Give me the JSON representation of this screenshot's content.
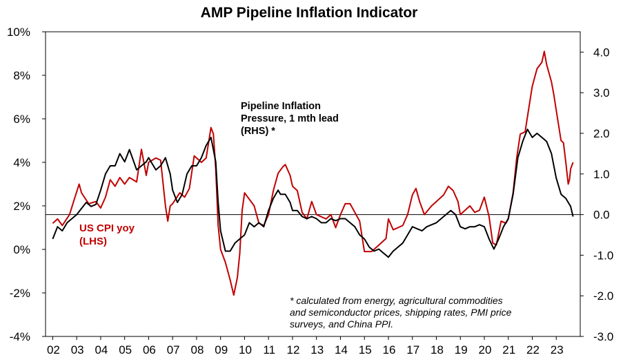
{
  "chart_data": {
    "type": "line",
    "title": "AMP Pipeline Inflation Indicator",
    "x_ticks": [
      "02",
      "03",
      "04",
      "05",
      "06",
      "07",
      "08",
      "09",
      "10",
      "11",
      "12",
      "13",
      "14",
      "15",
      "16",
      "17",
      "18",
      "19",
      "20",
      "21",
      "22",
      "23"
    ],
    "left_axis": {
      "ticks": [
        "10%",
        "8%",
        "6%",
        "4%",
        "2%",
        "0%",
        "-2%",
        "-4%"
      ],
      "ylim": [
        -4,
        10
      ]
    },
    "right_axis": {
      "ticks": [
        "4.0",
        "3.0",
        "2.0",
        "1.0",
        "0.0",
        "-1.0",
        "-2.0",
        "-3.0"
      ],
      "ylim": [
        -3,
        4.5
      ]
    },
    "grid": false,
    "series": [
      {
        "name": "US CPI yoy (LHS)",
        "axis": "left",
        "color": "#c00000",
        "label_lines": [
          "US CPI yoy",
          "(LHS)"
        ],
        "points": [
          [
            2002.0,
            1.2
          ],
          [
            2002.2,
            1.4
          ],
          [
            2002.4,
            1.1
          ],
          [
            2002.7,
            1.6
          ],
          [
            2002.9,
            2.3
          ],
          [
            2003.1,
            3.0
          ],
          [
            2003.2,
            2.6
          ],
          [
            2003.5,
            2.1
          ],
          [
            2003.8,
            2.2
          ],
          [
            2004.0,
            1.9
          ],
          [
            2004.2,
            2.4
          ],
          [
            2004.4,
            3.2
          ],
          [
            2004.6,
            2.9
          ],
          [
            2004.8,
            3.3
          ],
          [
            2005.0,
            3.0
          ],
          [
            2005.2,
            3.3
          ],
          [
            2005.5,
            3.1
          ],
          [
            2005.7,
            4.6
          ],
          [
            2005.9,
            3.4
          ],
          [
            2006.0,
            4.0
          ],
          [
            2006.3,
            4.2
          ],
          [
            2006.5,
            4.1
          ],
          [
            2006.7,
            2.0
          ],
          [
            2006.8,
            1.3
          ],
          [
            2006.9,
            2.0
          ],
          [
            2007.0,
            2.1
          ],
          [
            2007.3,
            2.6
          ],
          [
            2007.5,
            2.4
          ],
          [
            2007.7,
            2.8
          ],
          [
            2007.9,
            4.3
          ],
          [
            2008.2,
            4.0
          ],
          [
            2008.4,
            4.2
          ],
          [
            2008.6,
            5.6
          ],
          [
            2008.7,
            5.3
          ],
          [
            2008.8,
            3.7
          ],
          [
            2008.9,
            1.1
          ],
          [
            2009.0,
            0.0
          ],
          [
            2009.2,
            -0.6
          ],
          [
            2009.4,
            -1.4
          ],
          [
            2009.55,
            -2.1
          ],
          [
            2009.7,
            -1.3
          ],
          [
            2009.8,
            -0.2
          ],
          [
            2009.9,
            1.8
          ],
          [
            2010.0,
            2.6
          ],
          [
            2010.2,
            2.3
          ],
          [
            2010.4,
            2.0
          ],
          [
            2010.6,
            1.2
          ],
          [
            2010.8,
            1.1
          ],
          [
            2011.0,
            1.6
          ],
          [
            2011.2,
            2.7
          ],
          [
            2011.4,
            3.5
          ],
          [
            2011.6,
            3.8
          ],
          [
            2011.7,
            3.9
          ],
          [
            2011.9,
            3.4
          ],
          [
            2012.0,
            2.9
          ],
          [
            2012.2,
            2.7
          ],
          [
            2012.4,
            1.7
          ],
          [
            2012.6,
            1.4
          ],
          [
            2012.8,
            2.2
          ],
          [
            2013.0,
            1.6
          ],
          [
            2013.2,
            1.5
          ],
          [
            2013.4,
            1.4
          ],
          [
            2013.6,
            1.6
          ],
          [
            2013.8,
            1.0
          ],
          [
            2014.0,
            1.6
          ],
          [
            2014.2,
            2.1
          ],
          [
            2014.4,
            2.1
          ],
          [
            2014.6,
            1.7
          ],
          [
            2014.8,
            1.3
          ],
          [
            2015.0,
            -0.1
          ],
          [
            2015.3,
            -0.1
          ],
          [
            2015.6,
            0.2
          ],
          [
            2015.9,
            0.5
          ],
          [
            2016.0,
            1.4
          ],
          [
            2016.2,
            0.9
          ],
          [
            2016.4,
            1.0
          ],
          [
            2016.6,
            1.1
          ],
          [
            2016.8,
            1.6
          ],
          [
            2017.0,
            2.5
          ],
          [
            2017.15,
            2.8
          ],
          [
            2017.3,
            2.2
          ],
          [
            2017.5,
            1.6
          ],
          [
            2017.8,
            2.0
          ],
          [
            2018.0,
            2.2
          ],
          [
            2018.3,
            2.5
          ],
          [
            2018.5,
            2.9
          ],
          [
            2018.7,
            2.7
          ],
          [
            2018.9,
            2.2
          ],
          [
            2019.0,
            1.6
          ],
          [
            2019.2,
            1.8
          ],
          [
            2019.4,
            2.0
          ],
          [
            2019.6,
            1.7
          ],
          [
            2019.8,
            1.8
          ],
          [
            2020.0,
            2.4
          ],
          [
            2020.2,
            1.5
          ],
          [
            2020.35,
            0.3
          ],
          [
            2020.5,
            0.2
          ],
          [
            2020.7,
            1.3
          ],
          [
            2020.9,
            1.2
          ],
          [
            2021.0,
            1.4
          ],
          [
            2021.2,
            2.6
          ],
          [
            2021.35,
            4.2
          ],
          [
            2021.5,
            5.3
          ],
          [
            2021.7,
            5.4
          ],
          [
            2021.9,
            6.8
          ],
          [
            2022.0,
            7.5
          ],
          [
            2022.2,
            8.3
          ],
          [
            2022.4,
            8.6
          ],
          [
            2022.5,
            9.1
          ],
          [
            2022.6,
            8.5
          ],
          [
            2022.8,
            7.7
          ],
          [
            2022.9,
            7.1
          ],
          [
            2023.0,
            6.4
          ],
          [
            2023.2,
            5.0
          ],
          [
            2023.3,
            4.9
          ],
          [
            2023.4,
            4.0
          ],
          [
            2023.5,
            3.0
          ],
          [
            2023.55,
            3.2
          ],
          [
            2023.6,
            3.7
          ],
          [
            2023.7,
            4.0
          ]
        ]
      },
      {
        "name": "Pipeline Inflation Pressure, 1 mth lead (RHS) *",
        "axis": "right",
        "color": "#000000",
        "label_lines": [
          "Pipeline Inflation",
          "Pressure, 1 mth lead",
          "(RHS) *"
        ],
        "points": [
          [
            2002.0,
            -0.6
          ],
          [
            2002.2,
            -0.3
          ],
          [
            2002.4,
            -0.4
          ],
          [
            2002.6,
            -0.2
          ],
          [
            2002.8,
            -0.1
          ],
          [
            2003.0,
            0.0
          ],
          [
            2003.2,
            0.15
          ],
          [
            2003.4,
            0.3
          ],
          [
            2003.6,
            0.2
          ],
          [
            2003.8,
            0.25
          ],
          [
            2004.0,
            0.6
          ],
          [
            2004.2,
            1.0
          ],
          [
            2004.4,
            1.2
          ],
          [
            2004.6,
            1.2
          ],
          [
            2004.8,
            1.5
          ],
          [
            2005.0,
            1.3
          ],
          [
            2005.2,
            1.6
          ],
          [
            2005.5,
            1.1
          ],
          [
            2005.7,
            1.2
          ],
          [
            2005.9,
            1.3
          ],
          [
            2006.0,
            1.4
          ],
          [
            2006.3,
            1.1
          ],
          [
            2006.5,
            1.2
          ],
          [
            2006.7,
            1.4
          ],
          [
            2006.9,
            1.0
          ],
          [
            2007.0,
            0.6
          ],
          [
            2007.2,
            0.3
          ],
          [
            2007.4,
            0.5
          ],
          [
            2007.6,
            1.0
          ],
          [
            2007.8,
            1.2
          ],
          [
            2008.0,
            1.2
          ],
          [
            2008.2,
            1.4
          ],
          [
            2008.4,
            1.7
          ],
          [
            2008.6,
            1.9
          ],
          [
            2008.8,
            1.3
          ],
          [
            2008.9,
            0.3
          ],
          [
            2009.0,
            -0.4
          ],
          [
            2009.2,
            -0.9
          ],
          [
            2009.4,
            -0.9
          ],
          [
            2009.6,
            -0.7
          ],
          [
            2009.8,
            -0.6
          ],
          [
            2010.0,
            -0.5
          ],
          [
            2010.2,
            -0.2
          ],
          [
            2010.4,
            -0.3
          ],
          [
            2010.6,
            -0.2
          ],
          [
            2010.8,
            -0.3
          ],
          [
            2011.0,
            0.1
          ],
          [
            2011.2,
            0.4
          ],
          [
            2011.4,
            0.6
          ],
          [
            2011.5,
            0.5
          ],
          [
            2011.7,
            0.5
          ],
          [
            2011.9,
            0.3
          ],
          [
            2012.0,
            0.1
          ],
          [
            2012.2,
            0.1
          ],
          [
            2012.4,
            -0.05
          ],
          [
            2012.6,
            -0.1
          ],
          [
            2012.8,
            -0.05
          ],
          [
            2013.0,
            -0.1
          ],
          [
            2013.2,
            -0.2
          ],
          [
            2013.4,
            -0.2
          ],
          [
            2013.6,
            -0.1
          ],
          [
            2013.8,
            -0.15
          ],
          [
            2014.0,
            -0.1
          ],
          [
            2014.2,
            -0.1
          ],
          [
            2014.4,
            -0.2
          ],
          [
            2014.6,
            -0.3
          ],
          [
            2014.8,
            -0.5
          ],
          [
            2015.0,
            -0.6
          ],
          [
            2015.2,
            -0.8
          ],
          [
            2015.4,
            -0.9
          ],
          [
            2015.6,
            -0.85
          ],
          [
            2015.8,
            -0.95
          ],
          [
            2016.0,
            -1.05
          ],
          [
            2016.2,
            -0.9
          ],
          [
            2016.4,
            -0.8
          ],
          [
            2016.6,
            -0.7
          ],
          [
            2016.8,
            -0.5
          ],
          [
            2017.0,
            -0.3
          ],
          [
            2017.2,
            -0.35
          ],
          [
            2017.4,
            -0.4
          ],
          [
            2017.6,
            -0.3
          ],
          [
            2017.8,
            -0.25
          ],
          [
            2018.0,
            -0.2
          ],
          [
            2018.2,
            -0.1
          ],
          [
            2018.4,
            0.0
          ],
          [
            2018.6,
            0.1
          ],
          [
            2018.8,
            0.0
          ],
          [
            2019.0,
            -0.3
          ],
          [
            2019.2,
            -0.35
          ],
          [
            2019.4,
            -0.3
          ],
          [
            2019.6,
            -0.3
          ],
          [
            2019.8,
            -0.25
          ],
          [
            2020.0,
            -0.3
          ],
          [
            2020.2,
            -0.6
          ],
          [
            2020.4,
            -0.85
          ],
          [
            2020.6,
            -0.6
          ],
          [
            2020.8,
            -0.3
          ],
          [
            2021.0,
            -0.1
          ],
          [
            2021.2,
            0.5
          ],
          [
            2021.4,
            1.4
          ],
          [
            2021.6,
            1.8
          ],
          [
            2021.8,
            2.1
          ],
          [
            2022.0,
            1.9
          ],
          [
            2022.2,
            2.0
          ],
          [
            2022.4,
            1.9
          ],
          [
            2022.6,
            1.8
          ],
          [
            2022.8,
            1.5
          ],
          [
            2023.0,
            0.9
          ],
          [
            2023.2,
            0.5
          ],
          [
            2023.4,
            0.4
          ],
          [
            2023.6,
            0.2
          ],
          [
            2023.7,
            -0.05
          ]
        ]
      }
    ],
    "footnote_lines": [
      "* calculated from energy, agricultural commodities",
      "and semiconductor prices, shipping rates, PMI price",
      "surveys, and China PPI."
    ]
  }
}
